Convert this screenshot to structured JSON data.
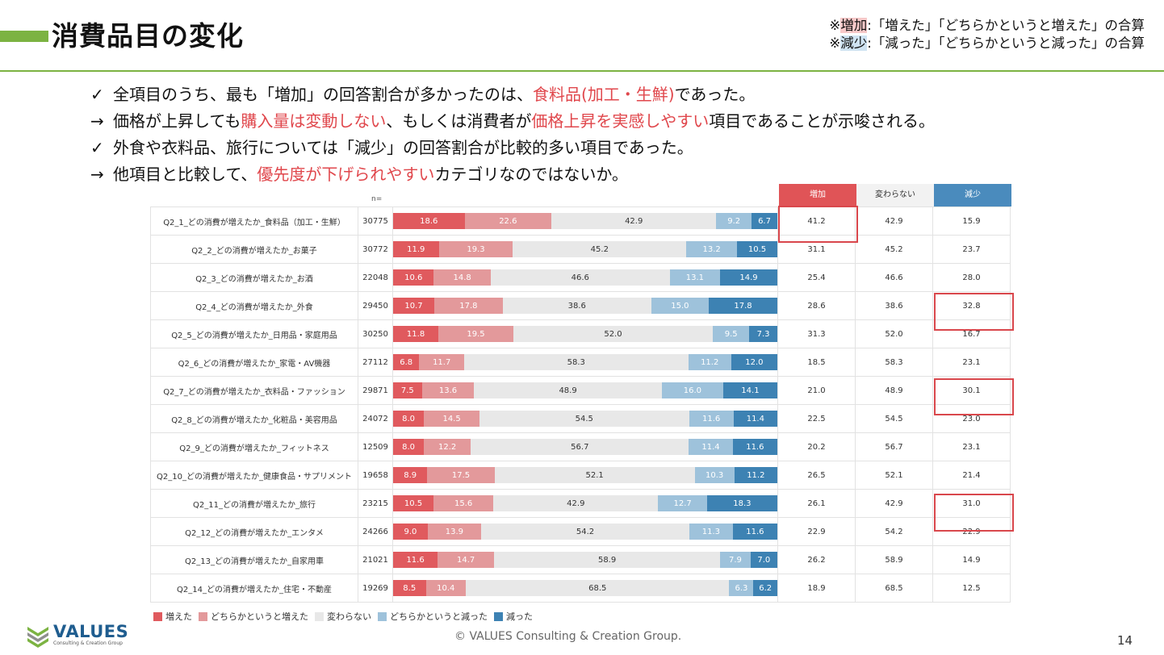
{
  "header": {
    "title": "消費品目の変化",
    "note1": {
      "prefix": "※",
      "term": "増加",
      "rest": ":「増えた」「どちらかというと増えた」の合算"
    },
    "note2": {
      "prefix": "※",
      "term": "減少",
      "rest": ":「減った」「どちらかというと減った」の合算"
    }
  },
  "bullets": [
    {
      "mark": "✓",
      "parts": [
        {
          "t": "全項目のうち、最も「増加」の回答割合が多かったのは、",
          "red": false
        },
        {
          "t": "食料品(加工・生鮮)",
          "red": true
        },
        {
          "t": "であった。",
          "red": false
        }
      ]
    },
    {
      "mark": "→",
      "parts": [
        {
          "t": "価格が上昇しても",
          "red": false
        },
        {
          "t": "購入量は変動しない",
          "red": true
        },
        {
          "t": "、もしくは消費者が",
          "red": false
        },
        {
          "t": "価格上昇を実感しやすい",
          "red": true
        },
        {
          "t": "項目であることが示唆される。",
          "red": false
        }
      ]
    },
    {
      "mark": "✓",
      "parts": [
        {
          "t": "外食や衣料品、旅行については「減少」の回答割合が比較的多い項目であった。",
          "red": false
        }
      ]
    },
    {
      "mark": "→",
      "parts": [
        {
          "t": "他項目と比較して、",
          "red": false
        },
        {
          "t": "優先度が下げられやすい",
          "red": true
        },
        {
          "t": "カテゴリなのではないか。",
          "red": false
        }
      ]
    }
  ],
  "colors": {
    "inc": "#e05a5e",
    "slightly_inc": "#e3999b",
    "same": "#e8e8e8",
    "slightly_dec": "#9ec2db",
    "dec": "#3d82b3",
    "head_inc": "#e05457",
    "head_dec": "#4a8bbd"
  },
  "chart_data": {
    "type": "bar",
    "stacked": true,
    "orientation": "horizontal",
    "n_label": "n=",
    "summary_headers": [
      "増加",
      "変わらない",
      "減少"
    ],
    "legend": [
      "増えた",
      "どちらかというと増えた",
      "変わらない",
      "どちらかというと減った",
      "減った"
    ],
    "rows": [
      {
        "label": "Q2_1_どの消費が増えたか_食料品（加工・生鮮）",
        "n": "30775",
        "values": [
          18.6,
          22.6,
          42.9,
          9.2,
          6.7
        ],
        "summary": [
          "41.2",
          "42.9",
          "15.9"
        ]
      },
      {
        "label": "Q2_2_どの消費が増えたか_お菓子",
        "n": "30772",
        "values": [
          11.9,
          19.3,
          45.2,
          13.2,
          10.5
        ],
        "summary": [
          "31.1",
          "45.2",
          "23.7"
        ]
      },
      {
        "label": "Q2_3_どの消費が増えたか_お酒",
        "n": "22048",
        "values": [
          10.6,
          14.8,
          46.6,
          13.1,
          14.9
        ],
        "summary": [
          "25.4",
          "46.6",
          "28.0"
        ]
      },
      {
        "label": "Q2_4_どの消費が増えたか_外食",
        "n": "29450",
        "values": [
          10.7,
          17.8,
          38.6,
          15.0,
          17.8
        ],
        "summary": [
          "28.6",
          "38.6",
          "32.8"
        ]
      },
      {
        "label": "Q2_5_どの消費が増えたか_日用品・家庭用品",
        "n": "30250",
        "values": [
          11.8,
          19.5,
          52.0,
          9.5,
          7.3
        ],
        "summary": [
          "31.3",
          "52.0",
          "16.7"
        ]
      },
      {
        "label": "Q2_6_どの消費が増えたか_家電・AV機器",
        "n": "27112",
        "values": [
          6.8,
          11.7,
          58.3,
          11.2,
          12.0
        ],
        "summary": [
          "18.5",
          "58.3",
          "23.1"
        ]
      },
      {
        "label": "Q2_7_どの消費が増えたか_衣料品・ファッション",
        "n": "29871",
        "values": [
          7.5,
          13.6,
          48.9,
          16.0,
          14.1
        ],
        "summary": [
          "21.0",
          "48.9",
          "30.1"
        ]
      },
      {
        "label": "Q2_8_どの消費が増えたか_化粧品・美容用品",
        "n": "24072",
        "values": [
          8.0,
          14.5,
          54.5,
          11.6,
          11.4
        ],
        "summary": [
          "22.5",
          "54.5",
          "23.0"
        ]
      },
      {
        "label": "Q2_9_どの消費が増えたか_フィットネス",
        "n": "12509",
        "values": [
          8.0,
          12.2,
          56.7,
          11.4,
          11.6
        ],
        "summary": [
          "20.2",
          "56.7",
          "23.1"
        ]
      },
      {
        "label": "Q2_10_どの消費が増えたか_健康食品・サプリメント",
        "n": "19658",
        "values": [
          8.9,
          17.5,
          52.1,
          10.3,
          11.2
        ],
        "summary": [
          "26.5",
          "52.1",
          "21.4"
        ]
      },
      {
        "label": "Q2_11_どの消費が増えたか_旅行",
        "n": "23215",
        "values": [
          10.5,
          15.6,
          42.9,
          12.7,
          18.3
        ],
        "summary": [
          "26.1",
          "42.9",
          "31.0"
        ]
      },
      {
        "label": "Q2_12_どの消費が増えたか_エンタメ",
        "n": "24266",
        "values": [
          9.0,
          13.9,
          54.2,
          11.3,
          11.6
        ],
        "summary": [
          "22.9",
          "54.2",
          "22.9"
        ]
      },
      {
        "label": "Q2_13_どの消費が増えたか_自家用車",
        "n": "21021",
        "values": [
          11.6,
          14.7,
          58.9,
          7.9,
          7.0
        ],
        "summary": [
          "26.2",
          "58.9",
          "14.9"
        ]
      },
      {
        "label": "Q2_14_どの消費が増えたか_住宅・不動産",
        "n": "19269",
        "values": [
          8.5,
          10.4,
          68.5,
          6.3,
          6.2
        ],
        "summary": [
          "18.9",
          "68.5",
          "12.5"
        ]
      }
    ]
  },
  "footer": {
    "logo_name": "VALUES",
    "logo_sub": "Consulting & Creation Group",
    "copyright": "© VALUES Consulting & Creation Group.",
    "page_number": "14"
  }
}
